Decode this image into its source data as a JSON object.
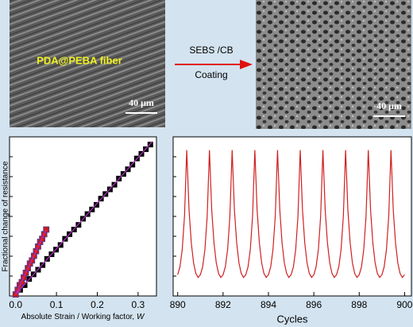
{
  "images": [
    {
      "label": "PDA@PEBA fiber",
      "scale": "40 μm"
    },
    {
      "scale": "40 μm"
    }
  ],
  "arrow": {
    "top": "SEBS /CB",
    "bottom": "Coating"
  },
  "chart_data": [
    {
      "type": "scatter",
      "ylabel": "Fractional change of resistance",
      "xlabel": "Absolute Strain / Working factor,",
      "xlabel_symbol": "W",
      "xlim": [
        -0.015,
        0.345
      ],
      "xticks": [
        {
          "value": 0,
          "label": "0.0"
        },
        0.1,
        0.2,
        0.3
      ],
      "ylim": [
        -0.01,
        1.02
      ],
      "series": [
        {
          "color": "#000000",
          "marker": "square",
          "x": [
            0,
            0.011,
            0.022,
            0.033,
            0.044,
            0.055,
            0.066,
            0.077,
            0.088,
            0.099,
            0.11,
            0.121,
            0.132,
            0.143,
            0.154,
            0.165,
            0.176,
            0.187,
            0.198,
            0.209,
            0.22,
            0.231,
            0.242,
            0.253,
            0.264,
            0.275,
            0.286,
            0.297,
            0.308,
            0.319,
            0.33
          ],
          "values": [
            0,
            0.03,
            0.06,
            0.1,
            0.13,
            0.16,
            0.19,
            0.23,
            0.26,
            0.29,
            0.32,
            0.36,
            0.39,
            0.42,
            0.45,
            0.49,
            0.52,
            0.55,
            0.58,
            0.62,
            0.65,
            0.68,
            0.71,
            0.75,
            0.78,
            0.81,
            0.84,
            0.88,
            0.91,
            0.94,
            0.97
          ]
        },
        {
          "color": "#d01818",
          "marker": "square",
          "x": [
            0,
            0.005,
            0.01,
            0.015,
            0.02,
            0.025,
            0.03,
            0.035,
            0.04,
            0.045,
            0.05,
            0.055,
            0.06,
            0.065,
            0.07,
            0.075
          ],
          "values": [
            0,
            0.03,
            0.06,
            0.08,
            0.11,
            0.14,
            0.17,
            0.2,
            0.22,
            0.25,
            0.28,
            0.31,
            0.34,
            0.36,
            0.39,
            0.42
          ]
        },
        {
          "color": "#b030c0",
          "mode": "line",
          "x": [
            0,
            0.335
          ],
          "values": [
            0,
            0.99
          ]
        },
        {
          "color": "#b030c0",
          "mode": "line",
          "x": [
            0,
            0.075
          ],
          "values": [
            0,
            0.42
          ]
        }
      ]
    },
    {
      "type": "line",
      "xlabel": "Cycles",
      "xlim": [
        889.8,
        900.3
      ],
      "xticks": [
        890,
        892,
        894,
        896,
        898,
        900
      ],
      "ylim": [
        -0.1,
        1.1
      ],
      "series": [
        {
          "color": "#d02020",
          "x": [
            890,
            890.1,
            890.2,
            890.3,
            890.4,
            890.5,
            890.6,
            890.7,
            890.8,
            890.9,
            891,
            891.1,
            891.2,
            891.3,
            891.4,
            891.5,
            891.6,
            891.7,
            891.8,
            891.9,
            892,
            892.1,
            892.2,
            892.3,
            892.4,
            892.5,
            892.6,
            892.7,
            892.8,
            892.9,
            893,
            893.1,
            893.2,
            893.3,
            893.4,
            893.5,
            893.6,
            893.7,
            893.8,
            893.9,
            894,
            894.1,
            894.2,
            894.3,
            894.4,
            894.5,
            894.6,
            894.7,
            894.8,
            894.9,
            895,
            895.1,
            895.2,
            895.3,
            895.4,
            895.5,
            895.6,
            895.7,
            895.8,
            895.9,
            896,
            896.1,
            896.2,
            896.3,
            896.4,
            896.5,
            896.6,
            896.7,
            896.8,
            896.9,
            897,
            897.1,
            897.2,
            897.3,
            897.4,
            897.5,
            897.6,
            897.7,
            897.8,
            897.9,
            898,
            898.1,
            898.2,
            898.3,
            898.4,
            898.5,
            898.6,
            898.7,
            898.8,
            898.9,
            899,
            899.1,
            899.2,
            899.3,
            899.4,
            899.5,
            899.6,
            899.7,
            899.8,
            899.9,
            900
          ],
          "values": [
            0.06,
            0.12,
            0.25,
            0.5,
            1.0,
            0.55,
            0.3,
            0.15,
            0.07,
            0.04,
            0.06,
            0.12,
            0.25,
            0.5,
            1.0,
            0.55,
            0.3,
            0.15,
            0.07,
            0.04,
            0.06,
            0.12,
            0.25,
            0.5,
            1.0,
            0.55,
            0.3,
            0.15,
            0.07,
            0.04,
            0.06,
            0.12,
            0.25,
            0.5,
            1.0,
            0.55,
            0.3,
            0.15,
            0.07,
            0.04,
            0.06,
            0.12,
            0.25,
            0.5,
            1.0,
            0.55,
            0.3,
            0.15,
            0.07,
            0.04,
            0.06,
            0.12,
            0.25,
            0.5,
            1.0,
            0.55,
            0.3,
            0.15,
            0.07,
            0.04,
            0.06,
            0.12,
            0.25,
            0.5,
            1.0,
            0.55,
            0.3,
            0.15,
            0.07,
            0.04,
            0.06,
            0.12,
            0.25,
            0.5,
            1.0,
            0.55,
            0.3,
            0.15,
            0.07,
            0.04,
            0.06,
            0.12,
            0.25,
            0.5,
            1.0,
            0.55,
            0.3,
            0.15,
            0.07,
            0.04,
            0.06,
            0.12,
            0.25,
            0.5,
            1.0,
            0.55,
            0.3,
            0.15,
            0.07,
            0.04,
            0.06
          ]
        }
      ]
    }
  ]
}
